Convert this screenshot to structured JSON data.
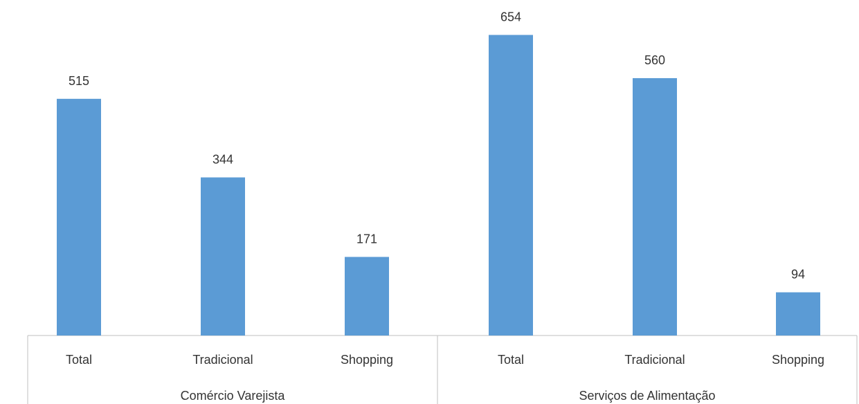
{
  "chart_data": {
    "type": "bar",
    "groups": [
      {
        "name": "Comércio Varejista",
        "categories": [
          "Total",
          "Tradicional",
          "Shopping"
        ],
        "values": [
          515,
          344,
          171
        ]
      },
      {
        "name": "Serviços de Alimentação",
        "categories": [
          "Total",
          "Tradicional",
          "Shopping"
        ],
        "values": [
          654,
          560,
          94
        ]
      }
    ],
    "data_labels": true,
    "grid": false,
    "ylim": [
      0,
      730
    ],
    "colors": {
      "bar": "#5B9BD5",
      "axis": "#BFBFBF",
      "text": "#333333"
    }
  }
}
